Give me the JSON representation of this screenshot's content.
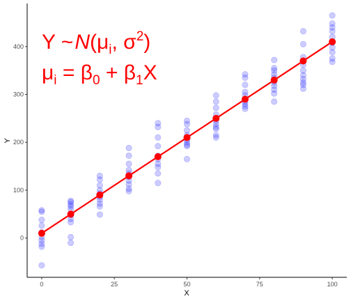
{
  "chart_data": {
    "type": "scatter",
    "xlabel": "X",
    "ylabel": "Y",
    "xlim": [
      -5,
      105
    ],
    "ylim": [
      -82,
      490
    ],
    "xticks": [
      0,
      25,
      50,
      75,
      100
    ],
    "yticks": [
      0,
      100,
      200,
      300,
      400
    ],
    "grid": false,
    "annotation": {
      "line1": {
        "a": "Y ~",
        "b": "N",
        "c": "(μ",
        "d": "i",
        "e": ", σ",
        "f": "2",
        "g": ")"
      },
      "line2": {
        "a": "μ",
        "b": "i",
        "c": " = β",
        "d": "0",
        "e": " + β",
        "f": "1",
        "g": "X"
      }
    },
    "series": [
      {
        "color": "#0000ff",
        "opacity": 0.2,
        "points": [
          [
            0,
            58
          ],
          [
            0,
            55
          ],
          [
            0,
            38
          ],
          [
            0,
            26
          ],
          [
            0,
            12
          ],
          [
            0,
            2
          ],
          [
            0,
            -5
          ],
          [
            0,
            -12
          ],
          [
            0,
            -18
          ],
          [
            0,
            -57
          ],
          [
            10,
            78
          ],
          [
            10,
            75
          ],
          [
            10,
            70
          ],
          [
            10,
            66
          ],
          [
            10,
            60
          ],
          [
            10,
            48
          ],
          [
            10,
            40
          ],
          [
            10,
            33
          ],
          [
            10,
            2
          ],
          [
            10,
            -10
          ],
          [
            20,
            130
          ],
          [
            20,
            122
          ],
          [
            20,
            110
          ],
          [
            20,
            100
          ],
          [
            20,
            93
          ],
          [
            20,
            86
          ],
          [
            20,
            80
          ],
          [
            20,
            72
          ],
          [
            20,
            66
          ],
          [
            20,
            49
          ],
          [
            30,
            188
          ],
          [
            30,
            172
          ],
          [
            30,
            155
          ],
          [
            30,
            142
          ],
          [
            30,
            135
          ],
          [
            30,
            128
          ],
          [
            30,
            120
          ],
          [
            30,
            112
          ],
          [
            30,
            103
          ],
          [
            30,
            98
          ],
          [
            40,
            240
          ],
          [
            40,
            232
          ],
          [
            40,
            210
          ],
          [
            40,
            192
          ],
          [
            40,
            172
          ],
          [
            40,
            165
          ],
          [
            40,
            155
          ],
          [
            40,
            148
          ],
          [
            40,
            135
          ],
          [
            40,
            115
          ],
          [
            50,
            245
          ],
          [
            50,
            238
          ],
          [
            50,
            225
          ],
          [
            50,
            215
          ],
          [
            50,
            210
          ],
          [
            50,
            205
          ],
          [
            50,
            200
          ],
          [
            50,
            195
          ],
          [
            50,
            192
          ],
          [
            50,
            165
          ],
          [
            60,
            298
          ],
          [
            60,
            285
          ],
          [
            60,
            272
          ],
          [
            60,
            258
          ],
          [
            60,
            245
          ],
          [
            60,
            238
          ],
          [
            60,
            232
          ],
          [
            60,
            228
          ],
          [
            60,
            215
          ],
          [
            60,
            210
          ],
          [
            70,
            342
          ],
          [
            70,
            335
          ],
          [
            70,
            320
          ],
          [
            70,
            305
          ],
          [
            70,
            298
          ],
          [
            70,
            290
          ],
          [
            70,
            285
          ],
          [
            70,
            280
          ],
          [
            70,
            275
          ],
          [
            70,
            270
          ],
          [
            80,
            372
          ],
          [
            80,
            355
          ],
          [
            80,
            350
          ],
          [
            80,
            342
          ],
          [
            80,
            335
          ],
          [
            80,
            325
          ],
          [
            80,
            318
          ],
          [
            80,
            310
          ],
          [
            80,
            302
          ],
          [
            80,
            285
          ],
          [
            90,
            432
          ],
          [
            90,
            405
          ],
          [
            90,
            378
          ],
          [
            90,
            362
          ],
          [
            90,
            350
          ],
          [
            90,
            340
          ],
          [
            90,
            332
          ],
          [
            90,
            325
          ],
          [
            90,
            320
          ],
          [
            90,
            312
          ],
          [
            100,
            465
          ],
          [
            100,
            448
          ],
          [
            100,
            440
          ],
          [
            100,
            432
          ],
          [
            100,
            420
          ],
          [
            100,
            408
          ],
          [
            100,
            398
          ],
          [
            100,
            388
          ],
          [
            100,
            375
          ],
          [
            100,
            368
          ]
        ]
      },
      {
        "color": "#ff0000",
        "points": [
          [
            0,
            10
          ],
          [
            10,
            50
          ],
          [
            20,
            90
          ],
          [
            30,
            130
          ],
          [
            40,
            170
          ],
          [
            50,
            210
          ],
          [
            60,
            250
          ],
          [
            70,
            290
          ],
          [
            80,
            330
          ],
          [
            90,
            370
          ],
          [
            100,
            410
          ]
        ]
      }
    ],
    "fit_line": {
      "color": "#ff0000",
      "intercept": 10,
      "slope": 4
    }
  }
}
